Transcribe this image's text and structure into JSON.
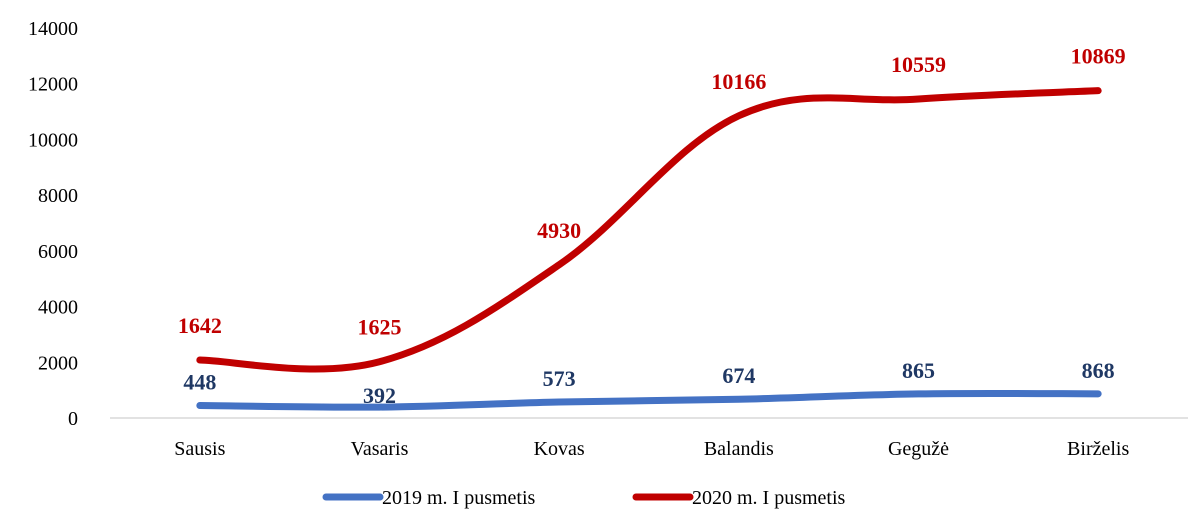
{
  "chart_data": {
    "type": "line",
    "title": "",
    "xlabel": "",
    "ylabel": "",
    "categories": [
      "Sausis",
      "Vasaris",
      "Kovas",
      "Balandis",
      "Gegužė",
      "Birželis"
    ],
    "ylim": [
      0,
      14000
    ],
    "yticks": [
      "0",
      "2000",
      "4000",
      "6000",
      "8000",
      "10000",
      "12000",
      "14000"
    ],
    "grid": false,
    "legend_position": "bottom",
    "series": [
      {
        "name": "2019 m. I pusmetis",
        "color": "#4472C4",
        "label_color": "#1F3864",
        "values": [
          448,
          392,
          573,
          674,
          865,
          868
        ],
        "labels": [
          "448",
          "392",
          "573",
          "674",
          "865",
          "868"
        ]
      },
      {
        "name": "2020 m. I pusmetis",
        "color": "#C00000",
        "label_color": "#C00000",
        "values": [
          2080,
          2020,
          5500,
          10850,
          11450,
          11750
        ],
        "labels": [
          "1642",
          "1625",
          "4930",
          "10166",
          "10559",
          "10869"
        ]
      }
    ]
  }
}
